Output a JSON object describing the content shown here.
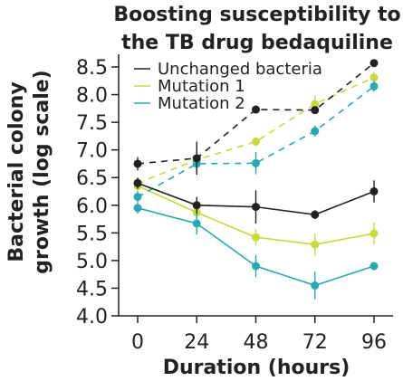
{
  "chart_data": {
    "type": "line",
    "title_lines": [
      "Boosting susceptibility to",
      "the TB drug bedaquiline"
    ],
    "xlabel": "Duration (hours)",
    "ylabel_lines": [
      "Bacterial colony",
      "growth (log scale)"
    ],
    "x": [
      0,
      24,
      48,
      72,
      96
    ],
    "xticks": [
      "0",
      "24",
      "48",
      "72",
      "96"
    ],
    "ylim": [
      4.0,
      8.5
    ],
    "yticks": [
      "4.0",
      "4.5",
      "5.0",
      "5.5",
      "6.0",
      "6.5",
      "7.0",
      "7.5",
      "8.0",
      "8.5"
    ],
    "legend_position": "top-left",
    "series": [
      {
        "name": "Unchanged bacteria",
        "color": "#222222",
        "points": [
          {
            "solid": [
              6.4,
              6.0,
              5.97,
              5.83,
              6.25
            ],
            "solid_err": [
              0.1,
              0.15,
              0.3,
              0.08,
              0.2
            ]
          },
          {
            "dashed": [
              6.75,
              6.85,
              7.73,
              7.72,
              8.57
            ],
            "dashed_err": [
              0.12,
              0.3,
              0.0,
              0.0,
              0.0
            ]
          }
        ]
      },
      {
        "name": "Mutation 1",
        "color": "#c8d93a",
        "points": [
          {
            "solid": [
              6.35,
              5.87,
              5.42,
              5.29,
              5.49
            ],
            "solid_err": [
              0.1,
              0.15,
              0.15,
              0.2,
              0.2
            ]
          },
          {
            "dashed": [
              6.4,
              6.82,
              7.15,
              7.83,
              8.31
            ],
            "dashed_err": [
              0.1,
              0.1,
              0.05,
              0.15,
              0.1
            ]
          }
        ]
      },
      {
        "name": "Mutation 2",
        "color": "#27a9b5",
        "points": [
          {
            "solid": [
              5.95,
              5.67,
              4.9,
              4.55,
              4.9
            ],
            "solid_err": [
              0.1,
              0.2,
              0.2,
              0.25,
              0.05
            ]
          },
          {
            "dashed": [
              6.15,
              6.75,
              6.76,
              7.34,
              8.15
            ],
            "dashed_err": [
              0.1,
              0.15,
              0.2,
              0.1,
              0.1
            ]
          }
        ]
      }
    ]
  }
}
